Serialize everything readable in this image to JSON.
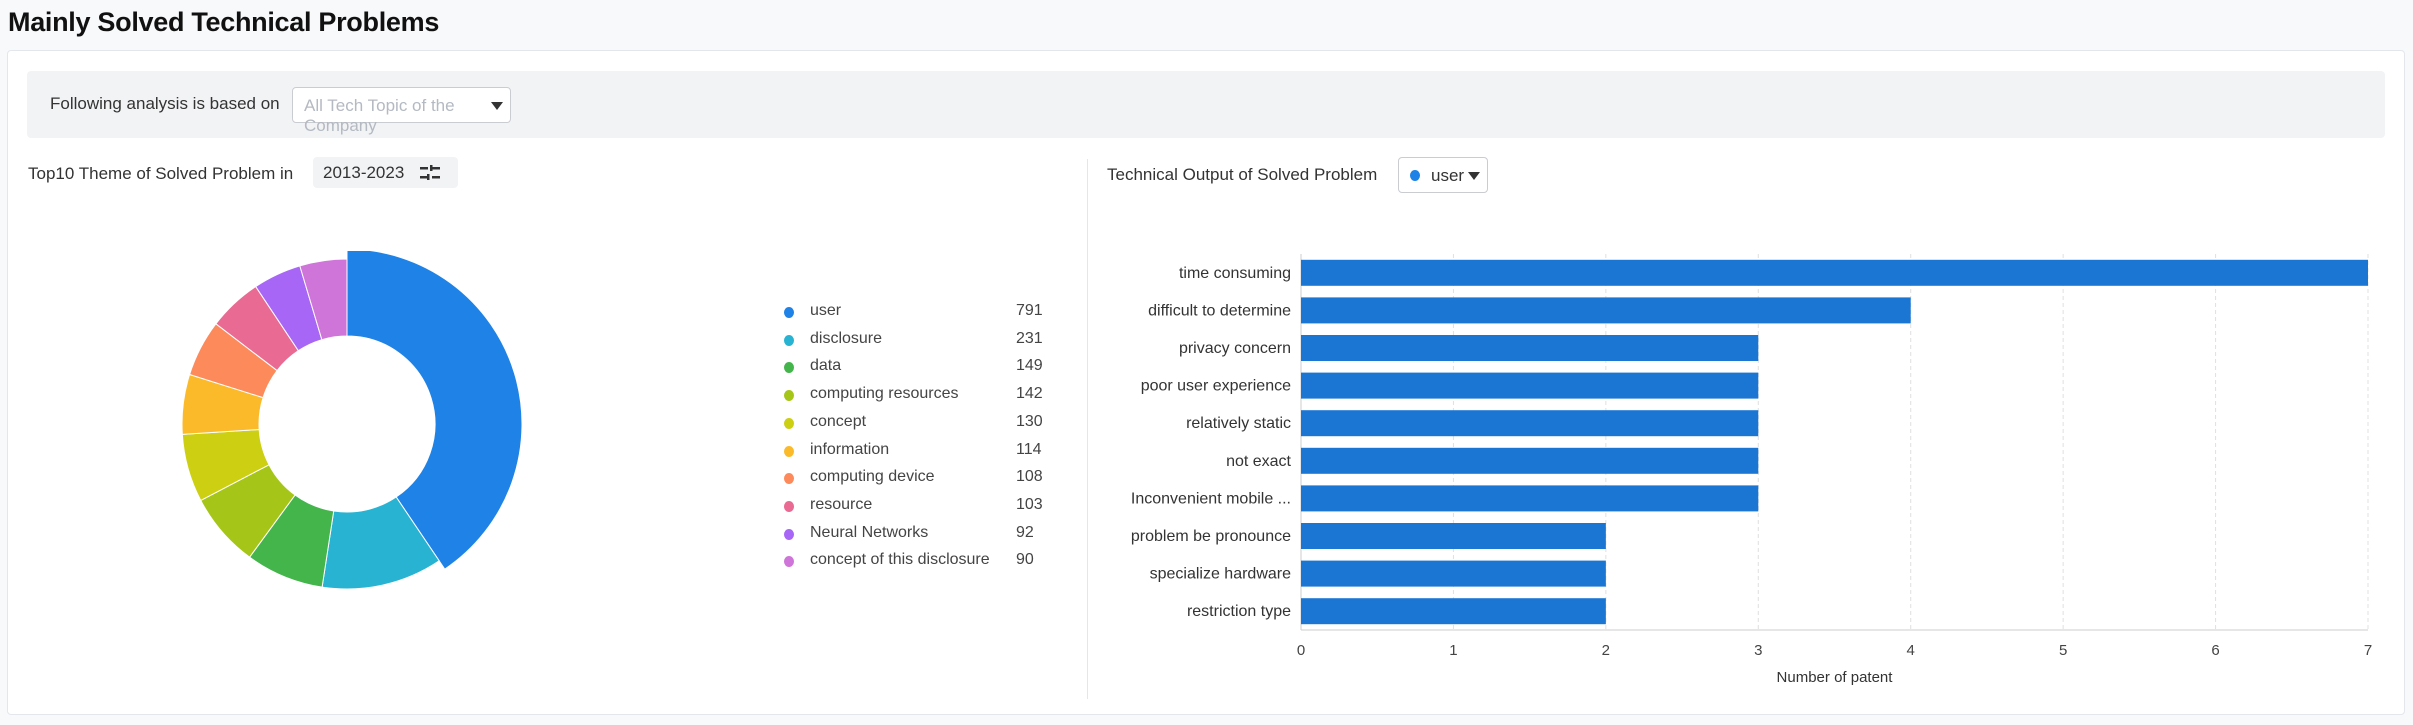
{
  "page_title": "Mainly Solved Technical Problems",
  "filter": {
    "label": "Following analysis is based on",
    "placeholder": "All Tech Topic of the Company"
  },
  "left": {
    "title": "Top10 Theme of Solved Problem in",
    "year_range": "2013-2023",
    "filter_icon": "sliders-icon"
  },
  "right": {
    "title": "Technical Output of Solved Problem",
    "series_selected": "user"
  },
  "chart_data": [
    {
      "type": "pie",
      "variant": "donut",
      "legend_position": "right",
      "selected": "user",
      "categories": [
        "user",
        "disclosure",
        "data",
        "computing resources",
        "concept",
        "information",
        "computing device",
        "resource",
        "Neural Networks",
        "concept of this disclosure"
      ],
      "values": [
        791,
        231,
        149,
        142,
        130,
        114,
        108,
        103,
        92,
        90
      ],
      "colors": [
        "#1e82e6",
        "#27b3d1",
        "#43b54b",
        "#a5c619",
        "#cdcf13",
        "#fbba2a",
        "#fd8a5b",
        "#e96a93",
        "#a766f5",
        "#cf74d8"
      ]
    },
    {
      "type": "bar",
      "orientation": "horizontal",
      "xlabel": "Number of patent",
      "xlim": [
        0,
        7
      ],
      "xticks": [
        "0",
        "1",
        "2",
        "3",
        "4",
        "5",
        "6",
        "7"
      ],
      "grid": true,
      "color": "#1b76d3",
      "categories": [
        "time consuming",
        "difficult to determine",
        "privacy concern",
        "poor user experience",
        "relatively static",
        "not exact",
        "Inconvenient mobile ...",
        "problem be pronounce",
        "specialize hardware",
        "restriction type"
      ],
      "values": [
        7,
        4,
        3,
        3,
        3,
        3,
        3,
        2,
        2,
        2
      ]
    }
  ]
}
